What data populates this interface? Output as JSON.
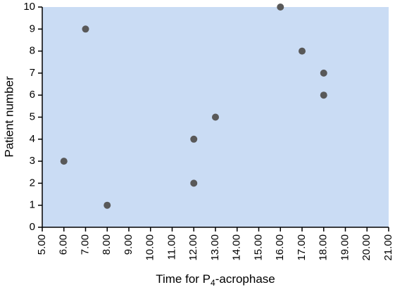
{
  "chart_data": {
    "type": "scatter",
    "xlabel": [
      "Time for P",
      "4",
      "-acrophase"
    ],
    "ylabel": "Patient number",
    "x": [
      6,
      7,
      8,
      12,
      12,
      13,
      16,
      17,
      18,
      18
    ],
    "values": [
      3,
      9,
      1,
      4,
      2,
      5,
      10,
      8,
      7,
      6
    ],
    "color": "#595959",
    "background": "#cadcf4",
    "xlim": [
      5,
      21
    ],
    "xticks": [
      {
        "value": 5,
        "label": "5.00"
      },
      {
        "value": 6,
        "label": "6.00"
      },
      {
        "value": 7,
        "label": "7.00"
      },
      {
        "value": 8,
        "label": "8.00"
      },
      {
        "value": 9,
        "label": "9.00"
      },
      {
        "value": 10,
        "label": "10.00"
      },
      {
        "value": 11,
        "label": "11.00"
      },
      {
        "value": 12,
        "label": "12.00"
      },
      {
        "value": 13,
        "label": "13.00"
      },
      {
        "value": 14,
        "label": "14.00"
      },
      {
        "value": 15,
        "label": "15.00"
      },
      {
        "value": 16,
        "label": "16.00"
      },
      {
        "value": 17,
        "label": "17.00"
      },
      {
        "value": 18,
        "label": "18.00"
      },
      {
        "value": 19,
        "label": "19.00"
      },
      {
        "value": 20,
        "label": "20.00"
      },
      {
        "value": 21,
        "label": "21.00"
      }
    ],
    "ylim": [
      0,
      10
    ],
    "yticks": [
      0,
      1,
      2,
      3,
      4,
      5,
      6,
      7,
      8,
      9,
      10
    ]
  }
}
